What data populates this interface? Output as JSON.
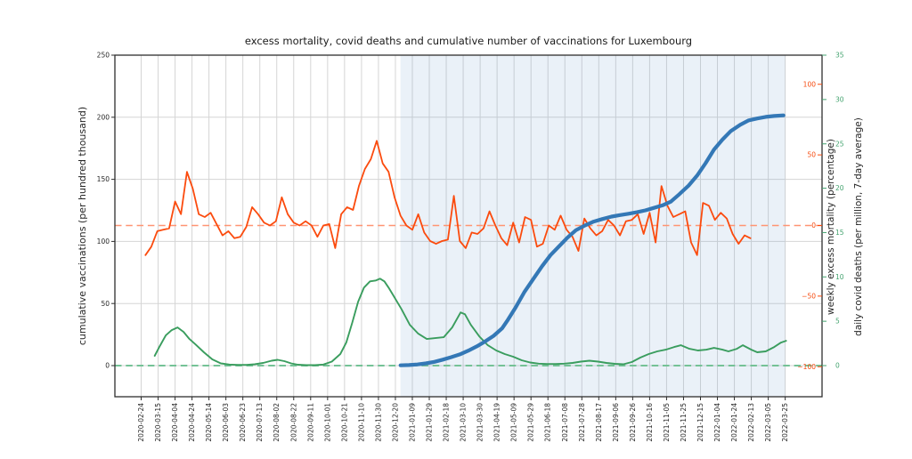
{
  "title": "excess mortality, covid deaths and cumulative number of vaccinations for Luxembourg",
  "colors": {
    "vaccinations_line": "#3478b6",
    "mortality_line": "#fb4b0e",
    "mortality_dash": "#ff9472",
    "mortality_text": "#f64a0e",
    "deaths_line": "#3a9d5e",
    "deaths_dash": "#74c296",
    "deaths_text": "#45a470",
    "grid": "#d5d5d5",
    "spine": "#2e2e2e",
    "tick_text": "#262626",
    "shading": "rgba(114,158,206,0.15)"
  },
  "chart_data": {
    "type": "line",
    "title": "excess mortality, covid deaths and cumulative number of vaccinations for Luxembourg",
    "grid": true,
    "legend": "none",
    "axes": {
      "left": {
        "label": "cumulative vaccinations (per hundred thousand)",
        "tick_values": [
          0,
          50,
          100,
          150,
          200,
          250
        ],
        "tick_labels": [
          "0",
          "50",
          "100",
          "150",
          "200",
          "250"
        ],
        "range_shown": [
          0,
          250
        ]
      },
      "mortality": {
        "label": "weekly excess mortality (percentage)",
        "tick_values": [
          -100,
          -50,
          0,
          50,
          100
        ],
        "tick_labels": [
          "−100",
          "−50",
          "0",
          "50",
          "100"
        ],
        "range_shown": [
          -100,
          100
        ]
      },
      "deaths": {
        "label": "daily covid deaths (per million, 7-day average)",
        "tick_values": [
          0,
          5,
          10,
          15,
          20,
          25,
          30,
          35
        ],
        "tick_labels": [
          "0",
          "5",
          "10",
          "15",
          "20",
          "25",
          "30",
          "35"
        ],
        "range_shown": [
          0,
          35
        ]
      },
      "x": {
        "tick_labels": [
          "2020-02-24",
          "2020-03-15",
          "2020-04-04",
          "2020-04-24",
          "2020-05-14",
          "2020-06-03",
          "2020-06-23",
          "2020-07-13",
          "2020-08-02",
          "2020-08-22",
          "2020-09-11",
          "2020-10-01",
          "2020-10-21",
          "2020-11-10",
          "2020-11-30",
          "2020-12-20",
          "2021-01-09",
          "2021-01-29",
          "2021-02-18",
          "2021-03-10",
          "2021-03-30",
          "2021-04-19",
          "2021-05-09",
          "2021-05-29",
          "2021-06-18",
          "2021-07-08",
          "2021-07-28",
          "2021-08-17",
          "2021-09-06",
          "2021-09-26",
          "2021-10-16",
          "2021-11-05",
          "2021-11-25",
          "2021-12-15",
          "2022-01-04",
          "2022-01-24",
          "2022-02-13",
          "2022-03-05",
          "2022-03-25"
        ]
      }
    },
    "shaded_region": {
      "from": "2020-12-26",
      "to": "2022-03-25"
    },
    "reference_lines": [
      {
        "axis": "mortality",
        "value": 0,
        "style": "dashed"
      },
      {
        "axis": "deaths",
        "value": 0,
        "style": "dashed"
      }
    ],
    "series": [
      {
        "name": "daily covid deaths (per million, 7-day average)",
        "axis": "deaths",
        "width": 1.9,
        "points": [
          [
            "2020-03-11",
            1.1
          ],
          [
            "2020-03-17",
            2.2
          ],
          [
            "2020-03-24",
            3.4
          ],
          [
            "2020-03-31",
            4.0
          ],
          [
            "2020-04-07",
            4.3
          ],
          [
            "2020-04-14",
            3.8
          ],
          [
            "2020-04-21",
            3.0
          ],
          [
            "2020-04-28",
            2.4
          ],
          [
            "2020-05-08",
            1.5
          ],
          [
            "2020-05-18",
            0.7
          ],
          [
            "2020-05-28",
            0.25
          ],
          [
            "2020-06-07",
            0.12
          ],
          [
            "2020-06-17",
            0.08
          ],
          [
            "2020-06-27",
            0.08
          ],
          [
            "2020-07-07",
            0.15
          ],
          [
            "2020-07-17",
            0.3
          ],
          [
            "2020-07-27",
            0.55
          ],
          [
            "2020-08-03",
            0.65
          ],
          [
            "2020-08-11",
            0.5
          ],
          [
            "2020-08-19",
            0.25
          ],
          [
            "2020-08-27",
            0.1
          ],
          [
            "2020-09-06",
            0.05
          ],
          [
            "2020-09-16",
            0.05
          ],
          [
            "2020-09-26",
            0.12
          ],
          [
            "2020-10-06",
            0.45
          ],
          [
            "2020-10-16",
            1.3
          ],
          [
            "2020-10-23",
            2.6
          ],
          [
            "2020-10-30",
            4.8
          ],
          [
            "2020-11-06",
            7.2
          ],
          [
            "2020-11-13",
            8.8
          ],
          [
            "2020-11-20",
            9.5
          ],
          [
            "2020-11-27",
            9.6
          ],
          [
            "2020-12-02",
            9.8
          ],
          [
            "2020-12-07",
            9.5
          ],
          [
            "2020-12-12",
            8.8
          ],
          [
            "2020-12-17",
            8.0
          ],
          [
            "2020-12-27",
            6.4
          ],
          [
            "2021-01-06",
            4.6
          ],
          [
            "2021-01-16",
            3.6
          ],
          [
            "2021-01-26",
            3.0
          ],
          [
            "2021-02-05",
            3.1
          ],
          [
            "2021-02-15",
            3.2
          ],
          [
            "2021-02-25",
            4.3
          ],
          [
            "2021-03-07",
            6.0
          ],
          [
            "2021-03-12",
            5.8
          ],
          [
            "2021-03-19",
            4.6
          ],
          [
            "2021-03-29",
            3.3
          ],
          [
            "2021-04-08",
            2.3
          ],
          [
            "2021-04-18",
            1.7
          ],
          [
            "2021-04-28",
            1.3
          ],
          [
            "2021-05-08",
            1.0
          ],
          [
            "2021-05-18",
            0.6
          ],
          [
            "2021-05-28",
            0.35
          ],
          [
            "2021-06-07",
            0.22
          ],
          [
            "2021-06-17",
            0.18
          ],
          [
            "2021-06-27",
            0.18
          ],
          [
            "2021-07-07",
            0.22
          ],
          [
            "2021-07-17",
            0.3
          ],
          [
            "2021-07-27",
            0.45
          ],
          [
            "2021-08-06",
            0.55
          ],
          [
            "2021-08-16",
            0.45
          ],
          [
            "2021-08-26",
            0.3
          ],
          [
            "2021-09-05",
            0.2
          ],
          [
            "2021-09-15",
            0.15
          ],
          [
            "2021-09-25",
            0.4
          ],
          [
            "2021-10-05",
            0.9
          ],
          [
            "2021-10-15",
            1.3
          ],
          [
            "2021-10-25",
            1.6
          ],
          [
            "2021-11-04",
            1.8
          ],
          [
            "2021-11-14",
            2.1
          ],
          [
            "2021-11-22",
            2.3
          ],
          [
            "2021-12-02",
            1.9
          ],
          [
            "2021-12-12",
            1.7
          ],
          [
            "2021-12-22",
            1.8
          ],
          [
            "2021-12-31",
            2.0
          ],
          [
            "2022-01-10",
            1.8
          ],
          [
            "2022-01-17",
            1.6
          ],
          [
            "2022-01-27",
            1.9
          ],
          [
            "2022-02-03",
            2.3
          ],
          [
            "2022-02-13",
            1.8
          ],
          [
            "2022-02-20",
            1.5
          ],
          [
            "2022-03-02",
            1.6
          ],
          [
            "2022-03-12",
            2.1
          ],
          [
            "2022-03-20",
            2.6
          ],
          [
            "2022-03-26",
            2.8
          ]
        ]
      },
      {
        "name": "weekly excess mortality (percentage)",
        "axis": "mortality",
        "width": 1.8,
        "points": [
          [
            "2020-02-29",
            -21
          ],
          [
            "2020-03-07",
            -15
          ],
          [
            "2020-03-14",
            -4
          ],
          [
            "2020-03-21",
            -3
          ],
          [
            "2020-03-28",
            -2
          ],
          [
            "2020-04-04",
            17
          ],
          [
            "2020-04-11",
            8
          ],
          [
            "2020-04-18",
            38
          ],
          [
            "2020-04-25",
            26
          ],
          [
            "2020-05-02",
            8
          ],
          [
            "2020-05-09",
            6
          ],
          [
            "2020-05-16",
            9
          ],
          [
            "2020-05-23",
            1
          ],
          [
            "2020-05-30",
            -7
          ],
          [
            "2020-06-06",
            -4
          ],
          [
            "2020-06-13",
            -9
          ],
          [
            "2020-06-20",
            -8
          ],
          [
            "2020-06-27",
            -1
          ],
          [
            "2020-07-04",
            13
          ],
          [
            "2020-07-11",
            8
          ],
          [
            "2020-07-18",
            2
          ],
          [
            "2020-07-25",
            0
          ],
          [
            "2020-08-01",
            3
          ],
          [
            "2020-08-08",
            20
          ],
          [
            "2020-08-15",
            8
          ],
          [
            "2020-08-22",
            2
          ],
          [
            "2020-08-29",
            0
          ],
          [
            "2020-09-05",
            3
          ],
          [
            "2020-09-12",
            0
          ],
          [
            "2020-09-19",
            -8
          ],
          [
            "2020-09-26",
            0
          ],
          [
            "2020-10-03",
            1
          ],
          [
            "2020-10-10",
            -16
          ],
          [
            "2020-10-17",
            8
          ],
          [
            "2020-10-24",
            13
          ],
          [
            "2020-10-31",
            11
          ],
          [
            "2020-11-07",
            28
          ],
          [
            "2020-11-14",
            40
          ],
          [
            "2020-11-21",
            47
          ],
          [
            "2020-11-28",
            60
          ],
          [
            "2020-12-05",
            44
          ],
          [
            "2020-12-12",
            38
          ],
          [
            "2020-12-19",
            20
          ],
          [
            "2020-12-26",
            7
          ],
          [
            "2021-01-02",
            0
          ],
          [
            "2021-01-09",
            -3
          ],
          [
            "2021-01-16",
            8
          ],
          [
            "2021-01-23",
            -5
          ],
          [
            "2021-01-30",
            -11
          ],
          [
            "2021-02-06",
            -13
          ],
          [
            "2021-02-13",
            -11
          ],
          [
            "2021-02-20",
            -10
          ],
          [
            "2021-02-27",
            21
          ],
          [
            "2021-03-06",
            -11
          ],
          [
            "2021-03-13",
            -16
          ],
          [
            "2021-03-20",
            -5
          ],
          [
            "2021-03-27",
            -6
          ],
          [
            "2021-04-03",
            -2
          ],
          [
            "2021-04-10",
            10
          ],
          [
            "2021-04-17",
            0
          ],
          [
            "2021-04-24",
            -9
          ],
          [
            "2021-05-01",
            -14
          ],
          [
            "2021-05-08",
            2
          ],
          [
            "2021-05-15",
            -12
          ],
          [
            "2021-05-22",
            6
          ],
          [
            "2021-05-29",
            4
          ],
          [
            "2021-06-05",
            -15
          ],
          [
            "2021-06-12",
            -13
          ],
          [
            "2021-06-19",
            0
          ],
          [
            "2021-06-26",
            -3
          ],
          [
            "2021-07-03",
            7
          ],
          [
            "2021-07-10",
            -3
          ],
          [
            "2021-07-17",
            -8
          ],
          [
            "2021-07-24",
            -18
          ],
          [
            "2021-07-31",
            5
          ],
          [
            "2021-08-07",
            -2
          ],
          [
            "2021-08-14",
            -7
          ],
          [
            "2021-08-21",
            -4
          ],
          [
            "2021-08-28",
            4
          ],
          [
            "2021-09-04",
            0
          ],
          [
            "2021-09-11",
            -7
          ],
          [
            "2021-09-18",
            3
          ],
          [
            "2021-09-25",
            4
          ],
          [
            "2021-10-02",
            8
          ],
          [
            "2021-10-09",
            -6
          ],
          [
            "2021-10-16",
            9
          ],
          [
            "2021-10-23",
            -12
          ],
          [
            "2021-10-30",
            28
          ],
          [
            "2021-11-06",
            14
          ],
          [
            "2021-11-13",
            6
          ],
          [
            "2021-11-20",
            8
          ],
          [
            "2021-11-27",
            10
          ],
          [
            "2021-12-04",
            -12
          ],
          [
            "2021-12-11",
            -21
          ],
          [
            "2021-12-18",
            16
          ],
          [
            "2021-12-25",
            14
          ],
          [
            "2022-01-01",
            4
          ],
          [
            "2022-01-08",
            9
          ],
          [
            "2022-01-15",
            5
          ],
          [
            "2022-01-22",
            -6
          ],
          [
            "2022-01-29",
            -13
          ],
          [
            "2022-02-05",
            -7
          ],
          [
            "2022-02-12",
            -9
          ]
        ]
      },
      {
        "name": "cumulative vaccinations (per hundred thousand)",
        "axis": "left",
        "width": 4.2,
        "points": [
          [
            "2020-12-26",
            0.2
          ],
          [
            "2021-01-05",
            0.4
          ],
          [
            "2021-01-15",
            0.9
          ],
          [
            "2021-01-25",
            1.8
          ],
          [
            "2021-02-04",
            3.0
          ],
          [
            "2021-02-14",
            4.8
          ],
          [
            "2021-02-24",
            6.8
          ],
          [
            "2021-03-06",
            9.0
          ],
          [
            "2021-03-16",
            12.0
          ],
          [
            "2021-03-26",
            15.5
          ],
          [
            "2021-04-05",
            19.5
          ],
          [
            "2021-04-15",
            24.0
          ],
          [
            "2021-04-25",
            30.0
          ],
          [
            "2021-05-01",
            36.0
          ],
          [
            "2021-05-11",
            47.0
          ],
          [
            "2021-05-21",
            59.0
          ],
          [
            "2021-06-01",
            70.0
          ],
          [
            "2021-06-11",
            80.0
          ],
          [
            "2021-06-21",
            89.0
          ],
          [
            "2021-07-01",
            96.0
          ],
          [
            "2021-07-11",
            103.0
          ],
          [
            "2021-07-21",
            109.0
          ],
          [
            "2021-08-01",
            113.0
          ],
          [
            "2021-08-11",
            116.0
          ],
          [
            "2021-08-21",
            118.0
          ],
          [
            "2021-09-01",
            120.0
          ],
          [
            "2021-09-11",
            121.2
          ],
          [
            "2021-09-21",
            122.3
          ],
          [
            "2021-10-01",
            123.5
          ],
          [
            "2021-10-11",
            125.0
          ],
          [
            "2021-10-21",
            127.0
          ],
          [
            "2021-10-31",
            129.0
          ],
          [
            "2021-11-10",
            132.0
          ],
          [
            "2021-11-20",
            138.0
          ],
          [
            "2021-12-01",
            145.0
          ],
          [
            "2021-12-11",
            153.0
          ],
          [
            "2021-12-21",
            163.0
          ],
          [
            "2021-12-31",
            174.0
          ],
          [
            "2022-01-10",
            182.0
          ],
          [
            "2022-01-20",
            189.0
          ],
          [
            "2022-01-31",
            194.0
          ],
          [
            "2022-02-10",
            197.5
          ],
          [
            "2022-02-20",
            199.0
          ],
          [
            "2022-03-02",
            200.3
          ],
          [
            "2022-03-12",
            201.0
          ],
          [
            "2022-03-23",
            201.5
          ]
        ]
      }
    ]
  }
}
